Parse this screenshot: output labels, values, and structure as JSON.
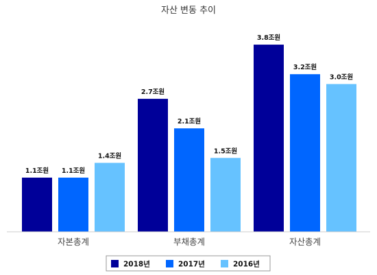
{
  "chart_data": {
    "type": "bar",
    "title": "자산 변동 추이",
    "categories": [
      "자본총계",
      "부채총계",
      "자산총계"
    ],
    "unit": "조원",
    "series": [
      {
        "name": "2018년",
        "color": "#000099",
        "values": [
          1.1,
          2.7,
          3.8
        ]
      },
      {
        "name": "2017년",
        "color": "#0066ff",
        "values": [
          1.1,
          2.1,
          3.2
        ]
      },
      {
        "name": "2016년",
        "color": "#66c2ff",
        "values": [
          1.4,
          1.5,
          3.0
        ]
      }
    ],
    "data_labels": [
      [
        "1.1조원",
        "2.7조원",
        "3.8조원"
      ],
      [
        "1.1조원",
        "2.1조원",
        "3.2조원"
      ],
      [
        "1.4조원",
        "1.5조원",
        "3.0조원"
      ]
    ],
    "ylim": [
      0,
      4.4
    ],
    "grid": false,
    "legend_position": "bottom"
  }
}
